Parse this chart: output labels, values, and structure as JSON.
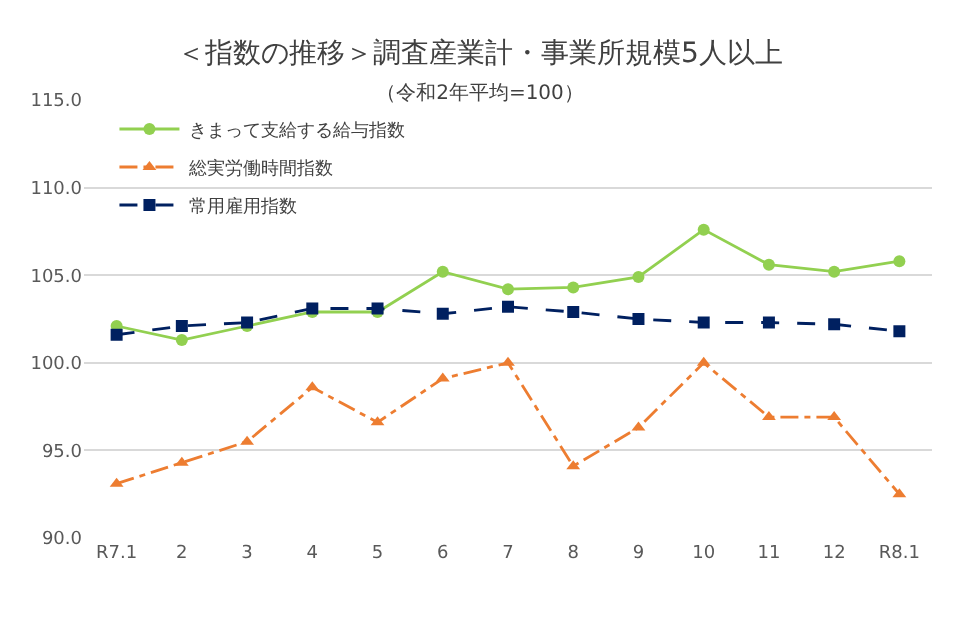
{
  "chart_data": {
    "type": "line",
    "title": "＜指数の推移＞調査産業計・事業所規模5人以上",
    "subtitle": "（令和2年平均=100）",
    "categories": [
      "R7.1",
      "2",
      "3",
      "4",
      "5",
      "6",
      "7",
      "8",
      "9",
      "10",
      "11",
      "12",
      "R8.1"
    ],
    "series": [
      {
        "name": "きまって支給する給与指数",
        "color": "#92d050",
        "marker": "circle",
        "line_style": "solid",
        "values": [
          102.1,
          101.3,
          102.1,
          102.9,
          102.9,
          105.2,
          104.2,
          104.3,
          104.9,
          107.6,
          105.6,
          105.2,
          105.8
        ]
      },
      {
        "name": "総実労働時間指数",
        "color": "#ed7d31",
        "marker": "triangle",
        "line_style": "dashdot",
        "values": [
          93.1,
          94.3,
          95.5,
          98.6,
          96.6,
          99.1,
          100.0,
          94.1,
          96.3,
          100.0,
          96.9,
          96.9,
          92.5
        ]
      },
      {
        "name": "常用雇用指数",
        "color": "#002060",
        "marker": "square",
        "line_style": "dashed",
        "values": [
          101.6,
          102.1,
          102.3,
          103.1,
          103.1,
          102.8,
          103.2,
          102.9,
          102.5,
          102.3,
          102.3,
          102.2,
          101.8
        ]
      }
    ],
    "ylim": [
      90,
      115
    ],
    "yticks": [
      {
        "value": 90,
        "label": "90.0"
      },
      {
        "value": 95,
        "label": "95.0"
      },
      {
        "value": 100,
        "label": "100.0"
      },
      {
        "value": 105,
        "label": "105.0"
      },
      {
        "value": 110,
        "label": "110.0"
      },
      {
        "value": 115,
        "label": "115.0"
      }
    ],
    "grid": "y",
    "legend": "top left"
  }
}
